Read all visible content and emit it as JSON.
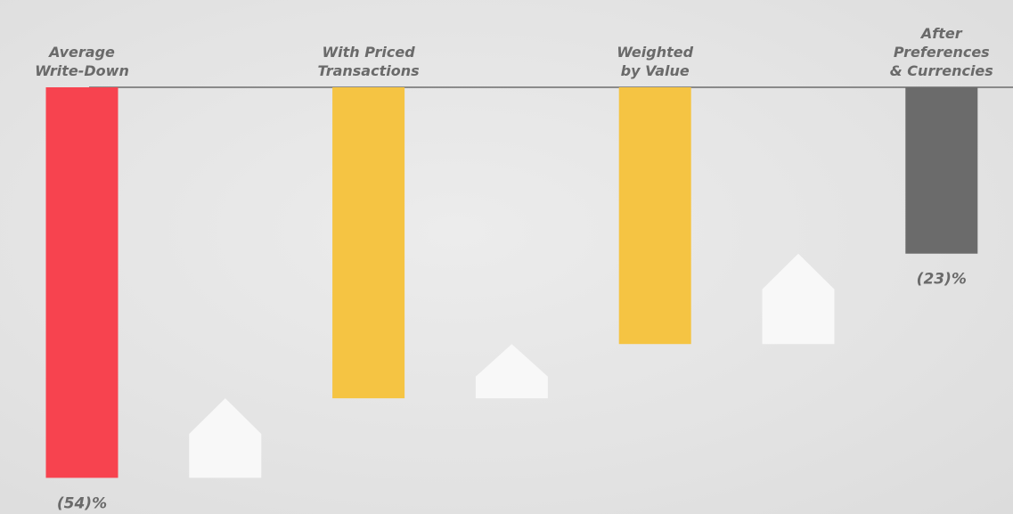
{
  "chart_data": {
    "type": "waterfall",
    "categories": [
      "Average\nWrite-Down",
      null,
      "With Priced\nTransactions",
      null,
      "Weighted\nby Value",
      null,
      "After\nPreferences\n& Currencies"
    ],
    "kinds": [
      "total",
      "step",
      "total",
      "step",
      "total",
      "step",
      "total"
    ],
    "values": [
      -54,
      11,
      -43,
      7.5,
      -35.5,
      12.5,
      -23
    ],
    "value_labels": [
      "(54)%",
      null,
      null,
      null,
      null,
      null,
      "(23)%"
    ],
    "colors": [
      "#f7434f",
      "#f8f8f8",
      "#f5c443",
      "#f8f8f8",
      "#f5c443",
      "#f8f8f8",
      "#6b6b6b"
    ],
    "ylim": [
      -59,
      0
    ]
  }
}
